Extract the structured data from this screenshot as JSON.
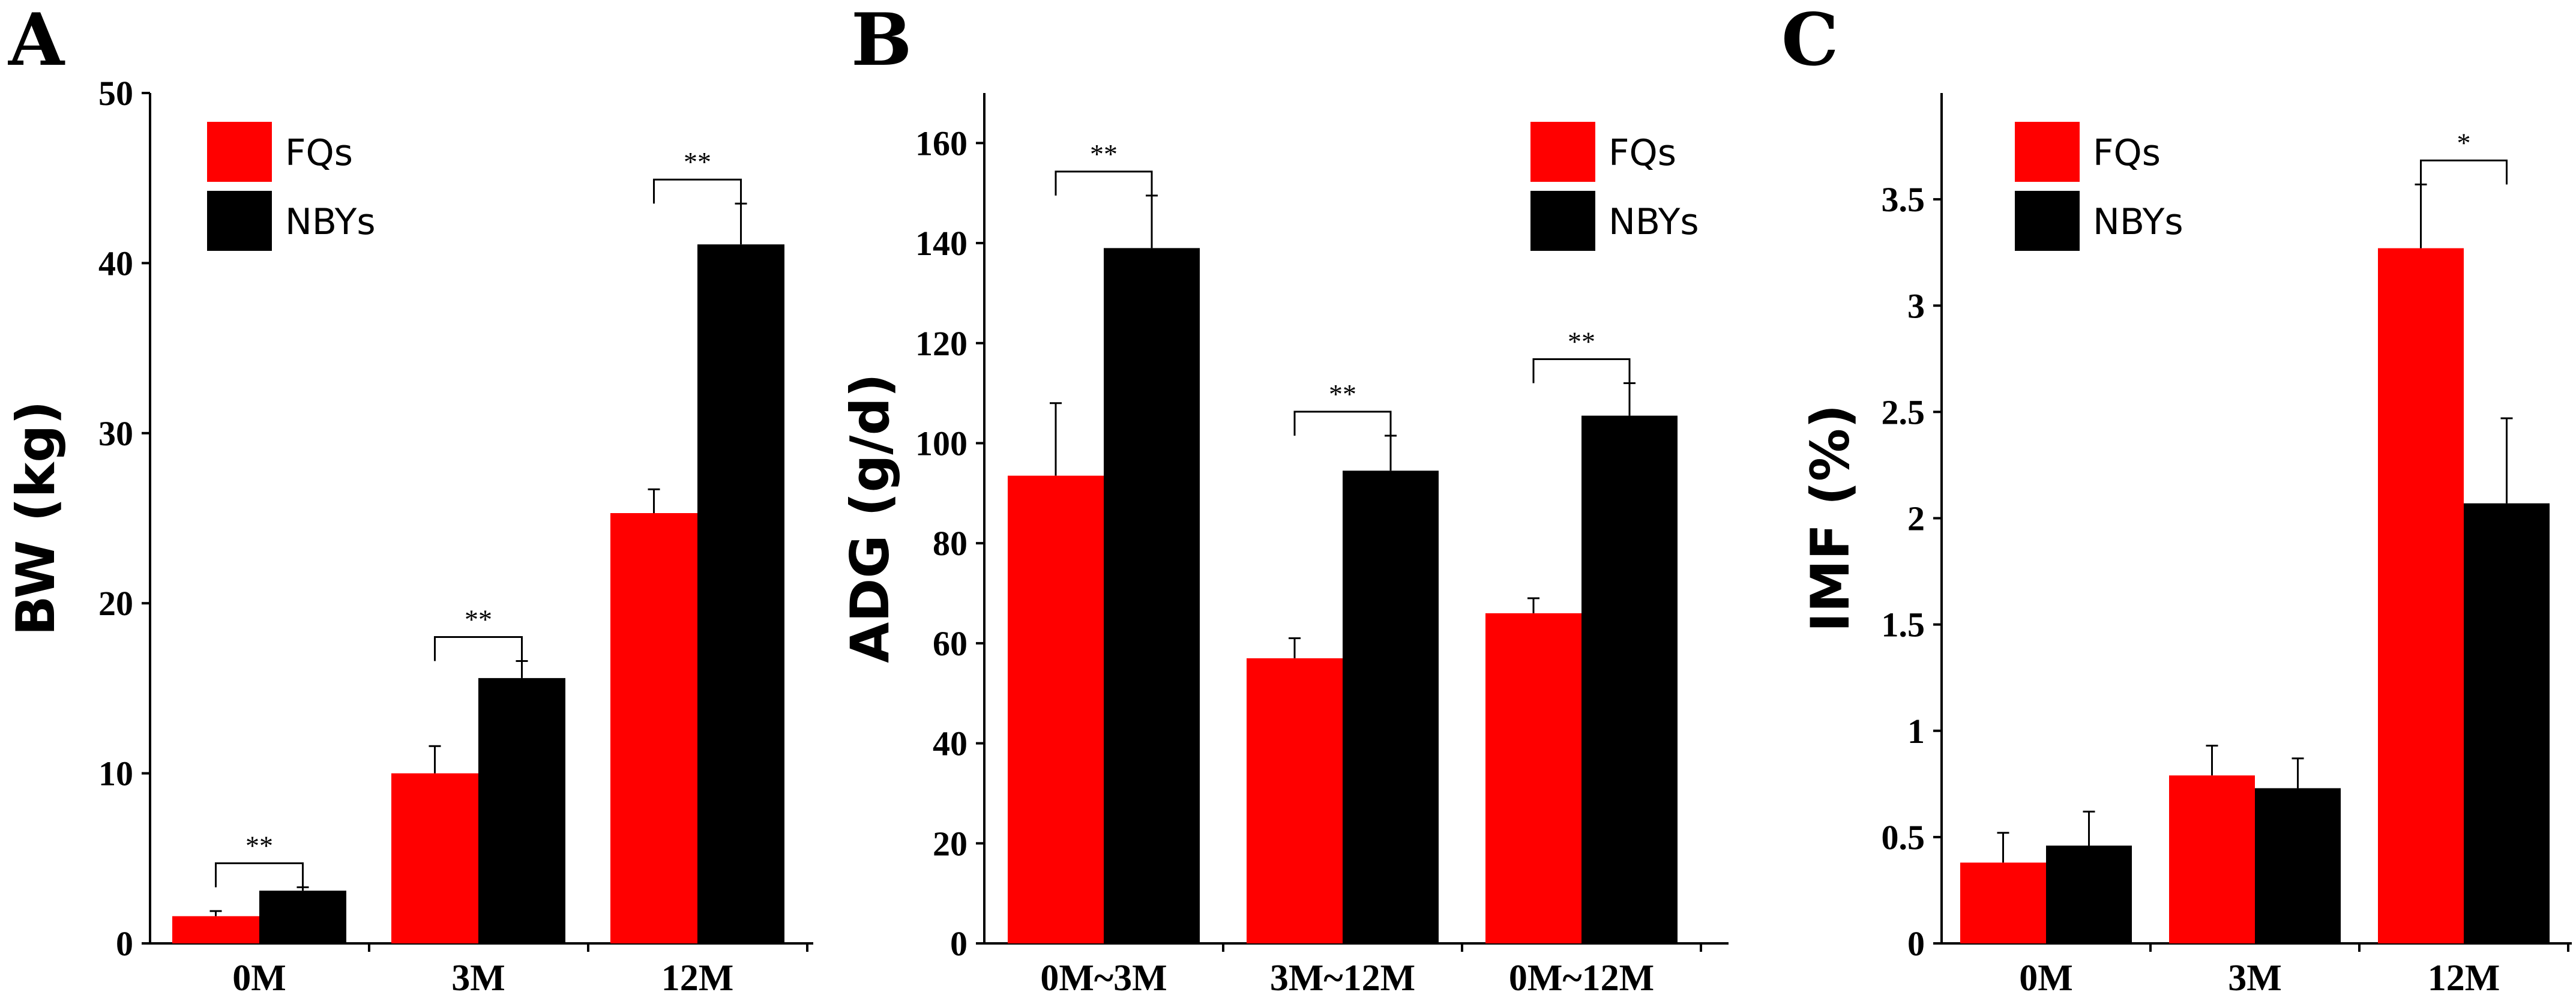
{
  "chart_data": [
    {
      "panel": "A",
      "type": "bar",
      "ylabel": "BW (kg)",
      "xlabel": "",
      "ylim": [
        0,
        50
      ],
      "yticks": [
        0,
        10,
        20,
        30,
        40,
        50
      ],
      "ytick_labels": [
        "0",
        "10",
        "20",
        "30",
        "40",
        "50"
      ],
      "categories": [
        "0M",
        "3M",
        "12M"
      ],
      "series": [
        {
          "name": "FQs",
          "color": "#ff0000",
          "values": [
            1.6,
            10.0,
            25.3
          ],
          "errors": [
            0.3,
            1.6,
            1.4
          ]
        },
        {
          "name": "NBYs",
          "color": "#000000",
          "values": [
            3.1,
            15.6,
            41.1
          ],
          "errors": [
            0.2,
            1.0,
            2.4
          ]
        }
      ],
      "significance": [
        "**",
        "**",
        "**"
      ],
      "legend": "top-left"
    },
    {
      "panel": "B",
      "type": "bar",
      "ylabel": "ADG (g/d)",
      "xlabel": "",
      "ylim": [
        0,
        170
      ],
      "yticks": [
        0,
        20,
        40,
        60,
        80,
        100,
        120,
        140,
        160
      ],
      "ytick_labels": [
        "0",
        "20",
        "40",
        "60",
        "80",
        "100",
        "120",
        "140",
        "160"
      ],
      "categories": [
        "0M~3M",
        "3M~12M",
        "0M~12M"
      ],
      "series": [
        {
          "name": "FQs",
          "color": "#ff0000",
          "values": [
            93.5,
            57.0,
            66.0
          ],
          "errors": [
            14.5,
            4.0,
            3.0
          ]
        },
        {
          "name": "NBYs",
          "color": "#000000",
          "values": [
            139.0,
            94.5,
            105.5
          ],
          "errors": [
            10.5,
            7.0,
            6.5
          ]
        }
      ],
      "significance": [
        "**",
        "**",
        "**"
      ],
      "legend": "top-right"
    },
    {
      "panel": "C",
      "type": "bar",
      "ylabel": "IMF (%)",
      "xlabel": "",
      "ylim": [
        0,
        4.0
      ],
      "yticks": [
        0,
        0.5,
        1,
        1.5,
        2,
        2.5,
        3,
        3.5
      ],
      "ytick_labels": [
        "0",
        "0.5",
        "1",
        "1.5",
        "2",
        "2.5",
        "3",
        "3.5"
      ],
      "categories": [
        "0M",
        "3M",
        "12M"
      ],
      "series": [
        {
          "name": "FQs",
          "color": "#ff0000",
          "values": [
            0.38,
            0.79,
            3.27
          ],
          "errors": [
            0.14,
            0.14,
            0.3
          ]
        },
        {
          "name": "NBYs",
          "color": "#000000",
          "values": [
            0.46,
            0.73,
            2.07
          ],
          "errors": [
            0.16,
            0.14,
            0.4
          ]
        }
      ],
      "significance": [
        "",
        "",
        "*"
      ],
      "legend": "top-left"
    }
  ]
}
